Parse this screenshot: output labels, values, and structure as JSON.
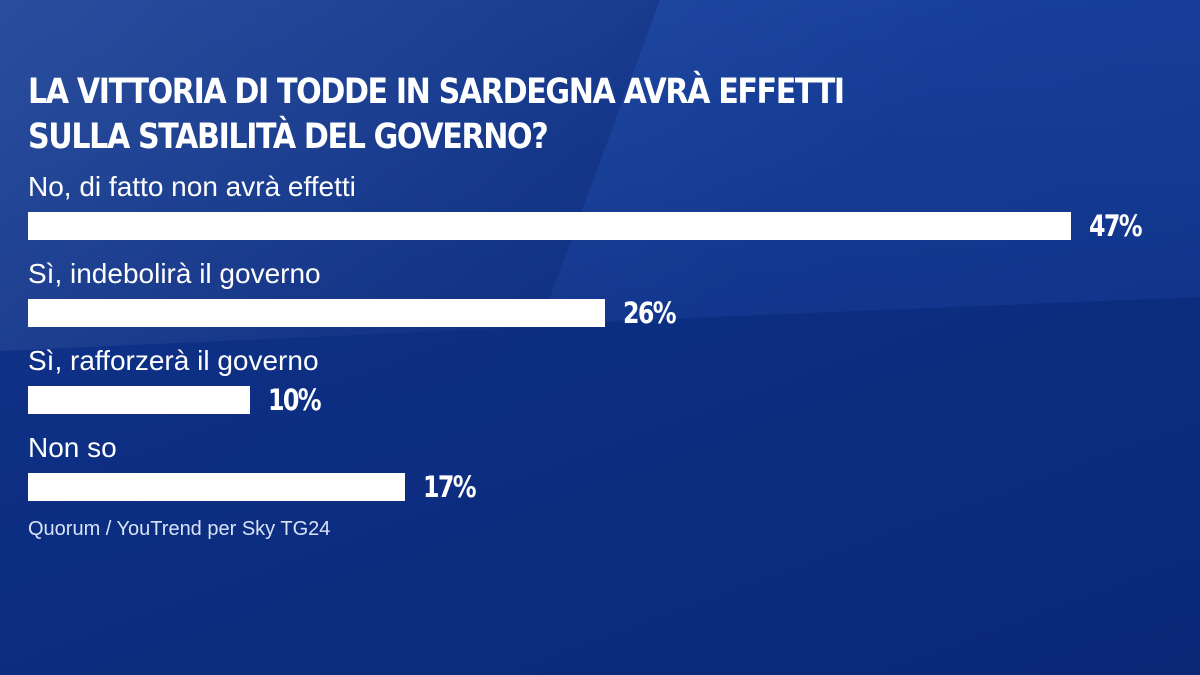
{
  "chart_data": {
    "type": "bar",
    "orientation": "horizontal",
    "title_lines": [
      "LA VITTORIA DI TODDE IN SARDEGNA AVRÀ EFFETTI",
      "SULLA STABILITÀ DEL GOVERNO?"
    ],
    "categories": [
      "No, di fatto non avrà effetti",
      "Sì, indebolirà il governo",
      "Sì, rafforzerà il governo",
      "Non so"
    ],
    "values": [
      47,
      26,
      10,
      17
    ],
    "value_labels": [
      "47%",
      "26%",
      "10%",
      "17%"
    ],
    "unit": "%",
    "source": "Quorum / YouTrend per Sky TG24",
    "colors": {
      "background": "#0b2a78",
      "bar": "#ffffff",
      "text": "#ffffff"
    }
  }
}
